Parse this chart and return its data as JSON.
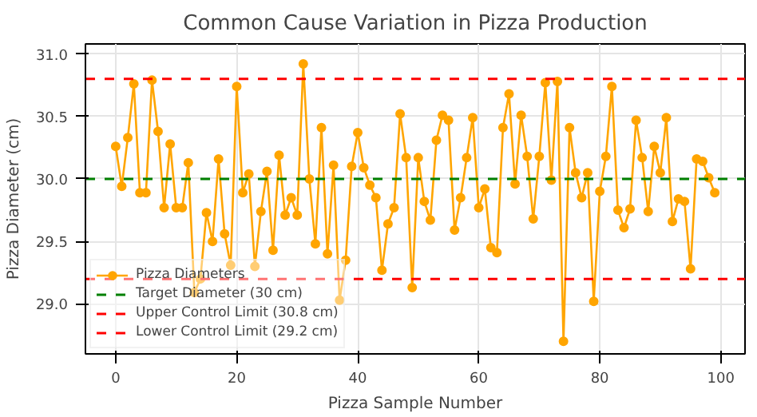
{
  "chart_data": {
    "type": "line",
    "title": "Common Cause Variation in Pizza Production",
    "xlabel": "Pizza Sample Number",
    "ylabel": "Pizza Diameter (cm)",
    "x": [
      0,
      1,
      2,
      3,
      4,
      5,
      6,
      7,
      8,
      9,
      10,
      11,
      12,
      13,
      14,
      15,
      16,
      17,
      18,
      19,
      20,
      21,
      22,
      23,
      24,
      25,
      26,
      27,
      28,
      29,
      30,
      31,
      32,
      33,
      34,
      35,
      36,
      37,
      38,
      39,
      40,
      41,
      42,
      43,
      44,
      45,
      46,
      47,
      48,
      49,
      50,
      51,
      52,
      53,
      54,
      55,
      56,
      57,
      58,
      59,
      60,
      61,
      62,
      63,
      64,
      65,
      66,
      67,
      68,
      69,
      70,
      71,
      72,
      73,
      74,
      75,
      76,
      77,
      78,
      79,
      80,
      81,
      82,
      83,
      84,
      85,
      86,
      87,
      88,
      89,
      90,
      91,
      92,
      93,
      94,
      95,
      96,
      97,
      98,
      99
    ],
    "series": [
      {
        "name": "Pizza Diameters",
        "color": "#ffa500",
        "values": [
          30.26,
          29.94,
          30.33,
          30.76,
          29.89,
          29.89,
          30.79,
          30.38,
          29.77,
          30.28,
          29.77,
          29.77,
          30.13,
          29.09,
          29.2,
          29.73,
          29.5,
          30.16,
          29.56,
          29.31,
          30.74,
          29.89,
          30.04,
          29.3,
          29.74,
          30.06,
          29.43,
          30.19,
          29.71,
          29.85,
          29.71,
          30.92,
          30.0,
          29.48,
          30.41,
          29.4,
          30.11,
          29.03,
          29.35,
          30.1,
          30.37,
          30.09,
          29.95,
          29.85,
          29.27,
          29.64,
          29.77,
          30.52,
          30.17,
          29.13,
          30.17,
          29.82,
          29.67,
          30.31,
          30.51,
          30.47,
          29.59,
          29.85,
          30.17,
          30.49,
          29.77,
          29.92,
          29.45,
          29.41,
          30.41,
          30.68,
          29.96,
          30.51,
          30.18,
          29.68,
          30.18,
          30.77,
          29.99,
          30.78,
          28.7,
          30.41,
          30.05,
          29.85,
          30.05,
          29.02,
          29.9,
          30.18,
          30.74,
          29.75,
          29.61,
          29.76,
          30.47,
          30.17,
          29.74,
          30.26,
          30.05,
          30.49,
          29.66,
          29.84,
          29.82,
          29.28,
          30.16,
          30.14,
          30.01,
          29.89
        ]
      }
    ],
    "marker": "circle",
    "line_style": "solid",
    "ref_lines": [
      {
        "axis": "y",
        "value": 30,
        "label": "Target Diameter (30 cm)",
        "color": "#008000",
        "line_style": "dashed"
      },
      {
        "axis": "y",
        "value": 30.8,
        "label": "Upper Control Limit (30.8 cm)",
        "color": "#ff0000",
        "line_style": "dashed"
      },
      {
        "axis": "y",
        "value": 29.2,
        "label": "Lower Control Limit (29.2 cm)",
        "color": "#ff0000",
        "line_style": "dashed"
      }
    ],
    "xlim": [
      -5,
      104
    ],
    "ylim": [
      28.6,
      31.08
    ],
    "xticks": [
      0,
      20,
      40,
      60,
      80,
      100
    ],
    "yticks": [
      {
        "value": 29,
        "label": "29.0"
      },
      29.5,
      {
        "value": 30,
        "label": "30.0"
      },
      30.5,
      {
        "value": 31,
        "label": "31.0"
      }
    ],
    "grid": true,
    "legend": "bottom left"
  }
}
